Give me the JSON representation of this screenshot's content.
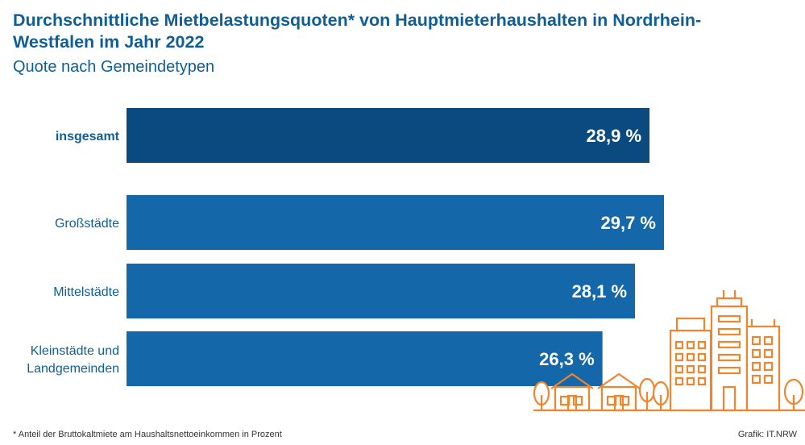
{
  "title": "Durchschnittliche Mietbelastungsquoten* von Hauptmieterhaushalten in Nordrhein-Westfalen im Jahr 2022",
  "subtitle": "Quote nach Gemeindetypen",
  "footnote": "* Anteil der Bruttokaltmiete am Haushaltsnettoeinkommen in Prozent",
  "credit": "Grafik: IT.NRW",
  "colors": {
    "total_bar": "#0a4a7e",
    "bar": "#1467a8",
    "title": "#0f5f96",
    "illustration": "#f0852d"
  },
  "illustration": "city-skyline-icon",
  "chart_data": {
    "type": "bar",
    "orientation": "horizontal",
    "categories": [
      "insgesamt",
      "Großstädte",
      "Mittelstädte",
      "Kleinstädte und Landgemeinden"
    ],
    "values": [
      28.9,
      29.7,
      28.1,
      26.3
    ],
    "value_labels": [
      "28,9 %",
      "29,7 %",
      "28,1 %",
      "26,3 %"
    ],
    "unit": "%",
    "highlighted": "insgesamt",
    "xlim": [
      0,
      29.7
    ]
  }
}
